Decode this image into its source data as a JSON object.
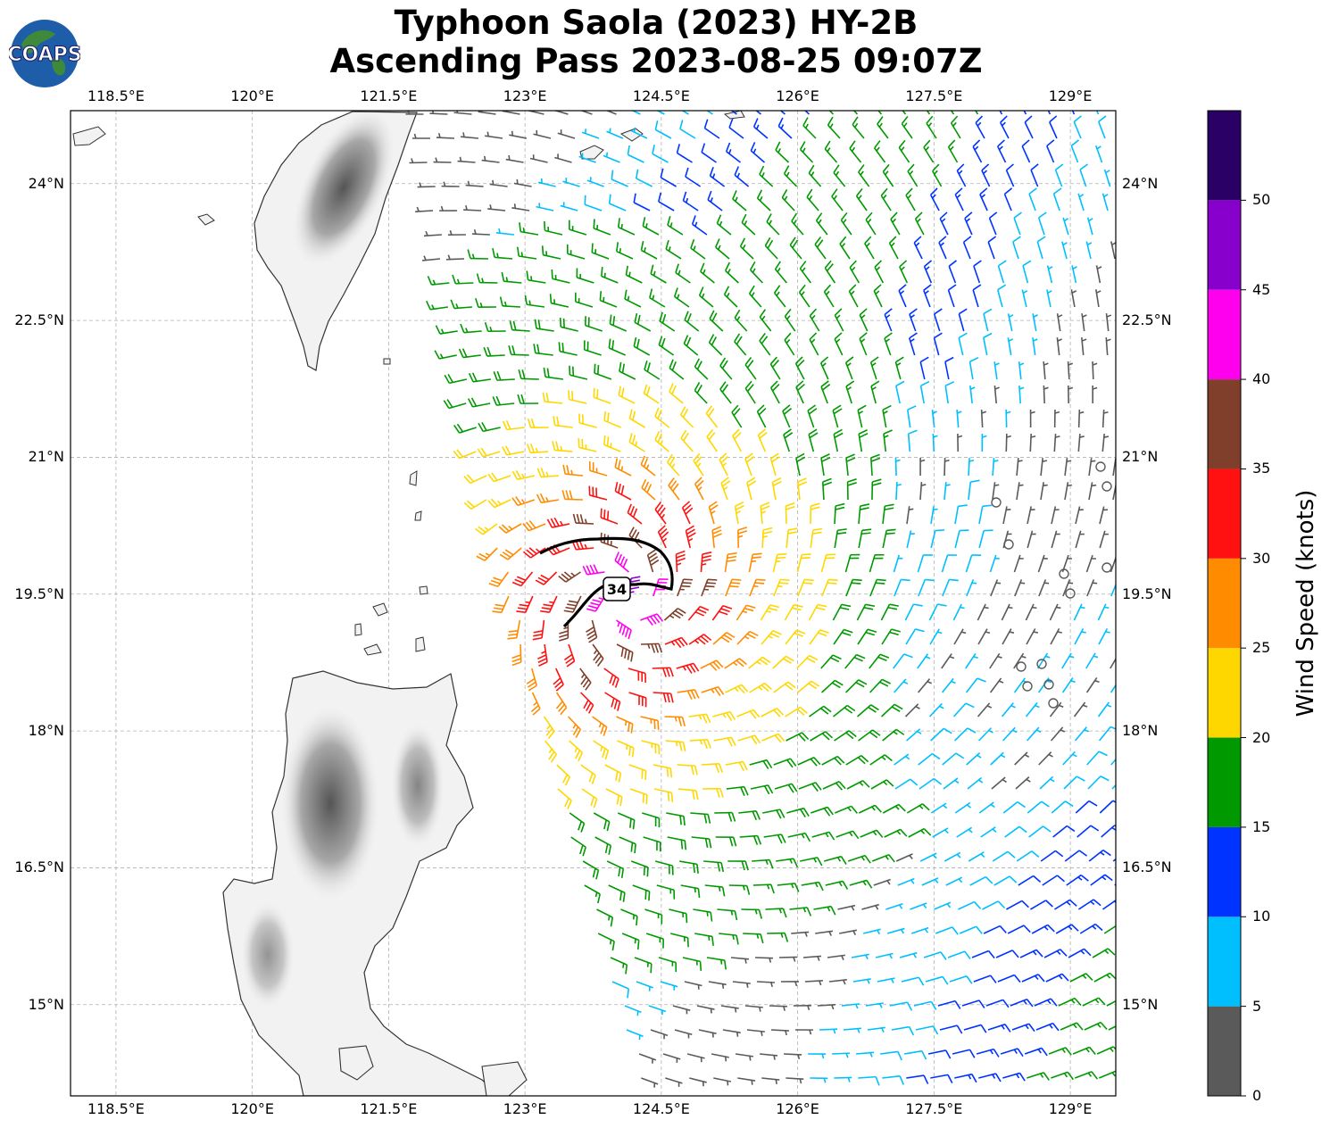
{
  "title": {
    "line1": "Typhoon Saola (2023) HY-2B",
    "line2": "Ascending Pass 2023-08-25 09:07Z"
  },
  "logo": {
    "text": "COAPS"
  },
  "map": {
    "lon_range": [
      118.0,
      129.5
    ],
    "lat_range": [
      14.0,
      24.8
    ],
    "lon_ticks": [
      "118.5°E",
      "120°E",
      "121.5°E",
      "123°E",
      "124.5°E",
      "126°E",
      "127.5°E",
      "129°E"
    ],
    "lon_tick_values": [
      118.5,
      120.0,
      121.5,
      123.0,
      124.5,
      126.0,
      127.5,
      129.0
    ],
    "lat_ticks": [
      "24°N",
      "22.5°N",
      "21°N",
      "19.5°N",
      "18°N",
      "16.5°N",
      "15°N"
    ],
    "lat_tick_values": [
      24.0,
      22.5,
      21.0,
      19.5,
      18.0,
      16.5,
      15.0
    ],
    "storm_center": {
      "lon": 124.05,
      "lat": 19.45
    },
    "contour_label": "34",
    "land_color": "#f2f2f2",
    "coast_color": "#333333",
    "grid": true
  },
  "colorbar": {
    "label": "Wind Speed (knots)",
    "ticks": [
      "0",
      "5",
      "10",
      "15",
      "20",
      "25",
      "30",
      "35",
      "40",
      "45",
      "50"
    ],
    "bins": [
      {
        "min": 0,
        "max": 5,
        "color": "#5a5a5a"
      },
      {
        "min": 5,
        "max": 10,
        "color": "#00bfff"
      },
      {
        "min": 10,
        "max": 15,
        "color": "#0033ff"
      },
      {
        "min": 15,
        "max": 20,
        "color": "#009900"
      },
      {
        "min": 20,
        "max": 25,
        "color": "#ffd700"
      },
      {
        "min": 25,
        "max": 30,
        "color": "#ff8c00"
      },
      {
        "min": 30,
        "max": 35,
        "color": "#ff1111"
      },
      {
        "min": 35,
        "max": 40,
        "color": "#7f3f2a"
      },
      {
        "min": 40,
        "max": 45,
        "color": "#ff00ee"
      },
      {
        "min": 45,
        "max": 50,
        "color": "#8800cc"
      },
      {
        "min": 50,
        "max": 55,
        "color": "#2a0066"
      }
    ]
  }
}
